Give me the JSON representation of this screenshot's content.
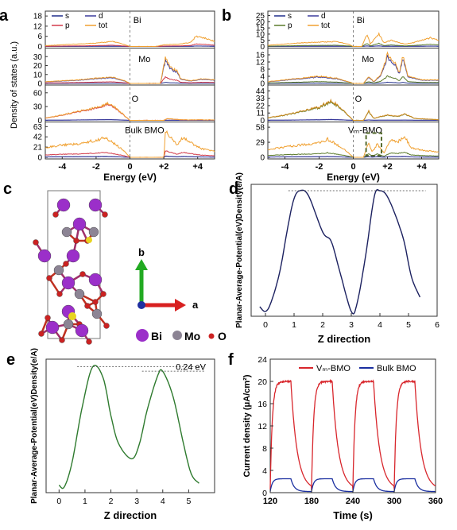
{
  "colors": {
    "s": "#1f2d8a",
    "p": "#d23b4a",
    "d": "#3a3a9c",
    "tot": "#f0a030",
    "pDark": "#5a7a2a",
    "totDark": "#d08a20",
    "curveD": "#1c2160",
    "curveE": "#2e7a2e",
    "vmbmo": "#d8262c",
    "bulk": "#1a2fa0",
    "bi": "#9b2fc9",
    "mo": "#8c8494",
    "o": "#cc2222",
    "highlight": "#556b2f"
  },
  "panels": {
    "a": {
      "letter": "a",
      "ylabel": "Density of states (a.u.)",
      "xlabel": "Energy (eV)"
    },
    "b": {
      "letter": "b",
      "ylabel": "",
      "xlabel": "Energy (eV)"
    },
    "c": {
      "letter": "c",
      "legend": [
        "Bi",
        "Mo",
        "O"
      ],
      "axis_b": "b",
      "axis_a": "a"
    },
    "d": {
      "letter": "d",
      "ylabel": "Planar-Average-Potential(eV)Density(e/A)",
      "xlabel": "Z direction"
    },
    "e": {
      "letter": "e",
      "ylabel": "Planar-Average-Potential(eV)Density(e/A)",
      "xlabel": "Z direction",
      "annotation": "0.24 eV"
    },
    "f": {
      "letter": "f",
      "ylabel": "Current density (μA/cm²)",
      "xlabel": "Time (s)"
    }
  },
  "chart_data": [
    {
      "id": "a",
      "type": "line",
      "xlabel": "Energy (eV)",
      "ylabel": "Density of states (a.u.)",
      "xlim": [
        -5,
        5
      ],
      "xticks": [
        "-4",
        "-2",
        "0",
        "+2",
        "+4"
      ],
      "legend": [
        "s",
        "d",
        "p",
        "tot"
      ],
      "subpanels": [
        {
          "label": "Bi",
          "ylim": [
            0,
            19
          ],
          "yticks": [
            "0",
            "6",
            "12",
            "18"
          ],
          "tot_points": [
            [
              -5,
              0.5
            ],
            [
              -4,
              1
            ],
            [
              -3,
              1.5
            ],
            [
              -2,
              2
            ],
            [
              -1,
              3
            ],
            [
              -0.3,
              1
            ],
            [
              0,
              0
            ],
            [
              1.5,
              0
            ],
            [
              2.0,
              1
            ],
            [
              3.0,
              1.5
            ],
            [
              3.6,
              2.5
            ],
            [
              3.9,
              6
            ],
            [
              4.4,
              5
            ],
            [
              5,
              3
            ]
          ]
        },
        {
          "label": "Mo",
          "ylim": [
            0,
            36
          ],
          "yticks": [
            "0",
            "10",
            "20",
            "30"
          ],
          "tot_points": [
            [
              -5,
              2
            ],
            [
              -4,
              3
            ],
            [
              -3,
              4
            ],
            [
              -2,
              6
            ],
            [
              -1,
              7
            ],
            [
              -0.3,
              3
            ],
            [
              0,
              0
            ],
            [
              1.8,
              0
            ],
            [
              2.1,
              30
            ],
            [
              2.4,
              18
            ],
            [
              2.8,
              14
            ],
            [
              3.0,
              5
            ],
            [
              3.6,
              3
            ],
            [
              4.2,
              5
            ],
            [
              5,
              4
            ]
          ]
        },
        {
          "label": "O",
          "ylim": [
            0,
            70
          ],
          "yticks": [
            "0",
            "30",
            "60"
          ],
          "tot_points": [
            [
              -5,
              5
            ],
            [
              -4,
              12
            ],
            [
              -3,
              20
            ],
            [
              -2,
              28
            ],
            [
              -1.2,
              38
            ],
            [
              -0.6,
              20
            ],
            [
              0,
              0
            ],
            [
              2.0,
              0
            ],
            [
              2.2,
              4
            ],
            [
              2.8,
              2
            ],
            [
              3.2,
              1
            ],
            [
              5,
              1
            ]
          ]
        },
        {
          "label": "Bulk BMO",
          "ylim": [
            0,
            66
          ],
          "yticks": [
            "0",
            "21",
            "42",
            "63"
          ],
          "tot_points": [
            [
              -5,
              20
            ],
            [
              -4,
              25
            ],
            [
              -3,
              28
            ],
            [
              -2,
              35
            ],
            [
              -1.5,
              40
            ],
            [
              -1,
              30
            ],
            [
              -0.4,
              15
            ],
            [
              0,
              0
            ],
            [
              2.0,
              0
            ],
            [
              2.1,
              55
            ],
            [
              2.4,
              40
            ],
            [
              2.8,
              25
            ],
            [
              3.1,
              40
            ],
            [
              3.6,
              30
            ],
            [
              4.2,
              18
            ],
            [
              5,
              12
            ]
          ]
        }
      ]
    },
    {
      "id": "b",
      "type": "line",
      "xlabel": "Energy (eV)",
      "ylabel": "",
      "xlim": [
        -5,
        5
      ],
      "xticks": [
        "-4",
        "-2",
        "0",
        "+2",
        "+4"
      ],
      "legend": [
        "s",
        "d",
        "p",
        "tot"
      ],
      "subpanels": [
        {
          "label": "Bi",
          "ylim": [
            0,
            26
          ],
          "yticks": [
            "0",
            "5",
            "10",
            "15",
            "20",
            "25"
          ],
          "tot_points": [
            [
              -5,
              1
            ],
            [
              -4,
              2
            ],
            [
              -3,
              3
            ],
            [
              -2,
              3.5
            ],
            [
              -1,
              4
            ],
            [
              -0.3,
              2
            ],
            [
              0,
              0
            ],
            [
              0.5,
              0
            ],
            [
              0.8,
              10
            ],
            [
              1.0,
              2
            ],
            [
              1.5,
              10
            ],
            [
              1.8,
              3
            ],
            [
              2.2,
              5
            ],
            [
              3.0,
              2
            ],
            [
              3.5,
              3
            ],
            [
              4.0,
              5
            ],
            [
              4.5,
              7
            ],
            [
              5,
              5
            ]
          ]
        },
        {
          "label": "Mo",
          "ylim": [
            0,
            18
          ],
          "yticks": [
            "0",
            "4",
            "8",
            "12",
            "16"
          ],
          "tot_points": [
            [
              -5,
              1
            ],
            [
              -4,
              2
            ],
            [
              -3,
              3
            ],
            [
              -2,
              4
            ],
            [
              -1,
              3
            ],
            [
              -0.3,
              1
            ],
            [
              0,
              0
            ],
            [
              0.6,
              0
            ],
            [
              0.9,
              4
            ],
            [
              1.2,
              1
            ],
            [
              1.6,
              5
            ],
            [
              2.0,
              16
            ],
            [
              2.4,
              12
            ],
            [
              2.7,
              6
            ],
            [
              2.9,
              16
            ],
            [
              3.2,
              4
            ],
            [
              4,
              2
            ],
            [
              5,
              2
            ]
          ]
        },
        {
          "label": "O",
          "ylim": [
            0,
            48
          ],
          "yticks": [
            "0",
            "11",
            "22",
            "33",
            "44"
          ],
          "tot_points": [
            [
              -5,
              4
            ],
            [
              -4,
              8
            ],
            [
              -3,
              14
            ],
            [
              -2,
              20
            ],
            [
              -1.3,
              30
            ],
            [
              -0.6,
              16
            ],
            [
              0,
              0
            ],
            [
              0.6,
              0
            ],
            [
              0.9,
              14
            ],
            [
              1.2,
              3
            ],
            [
              1.6,
              6
            ],
            [
              2.0,
              8
            ],
            [
              2.6,
              6
            ],
            [
              3.0,
              10
            ],
            [
              3.6,
              3
            ],
            [
              5,
              1
            ]
          ]
        },
        {
          "label": "Vₘ-BMO",
          "ylim": [
            0,
            62
          ],
          "yticks": [
            "0",
            "29",
            "58"
          ],
          "tot_points": [
            [
              -5,
              15
            ],
            [
              -4,
              20
            ],
            [
              -3,
              24
            ],
            [
              -2,
              28
            ],
            [
              -1.5,
              35
            ],
            [
              -1,
              25
            ],
            [
              -0.4,
              12
            ],
            [
              0,
              0
            ],
            [
              0.6,
              0
            ],
            [
              0.9,
              30
            ],
            [
              1.1,
              10
            ],
            [
              1.4,
              25
            ],
            [
              1.8,
              8
            ],
            [
              2.2,
              35
            ],
            [
              2.6,
              30
            ],
            [
              3.0,
              40
            ],
            [
              3.4,
              18
            ],
            [
              4,
              14
            ],
            [
              5,
              10
            ]
          ]
        }
      ]
    },
    {
      "id": "d",
      "type": "line",
      "xlabel": "Z direction",
      "ylabel": "Planar-Average-Potential(eV)Density(e/A)",
      "xlim": [
        -0.5,
        6
      ],
      "xticks": [
        "0",
        "1",
        "2",
        "3",
        "4",
        "5",
        "6"
      ],
      "ylim": [
        -4.3,
        4.0
      ],
      "series": [
        {
          "points": [
            [
              -0.2,
              -3.7
            ],
            [
              0,
              -4.0
            ],
            [
              0.2,
              -3.4
            ],
            [
              0.5,
              -1.5
            ],
            [
              0.8,
              1.5
            ],
            [
              1.0,
              3.1
            ],
            [
              1.2,
              3.6
            ],
            [
              1.5,
              3.3
            ],
            [
              2.0,
              1.0
            ],
            [
              2.3,
              0.4
            ],
            [
              2.6,
              -1.5
            ],
            [
              3.0,
              -4.0
            ],
            [
              3.2,
              -3.5
            ],
            [
              3.5,
              -0.5
            ],
            [
              3.8,
              3.2
            ],
            [
              4.0,
              3.6
            ],
            [
              4.3,
              3.1
            ],
            [
              4.8,
              0.7
            ],
            [
              5.1,
              -1.8
            ],
            [
              5.4,
              -3.1
            ]
          ]
        }
      ],
      "reference_line": 3.6
    },
    {
      "id": "e",
      "type": "line",
      "xlabel": "Z direction",
      "ylabel": "Planar-Average-Potential(eV)Density(e/A)",
      "xlim": [
        -0.5,
        6
      ],
      "xticks": [
        "0",
        "1",
        "2",
        "3",
        "4",
        "5"
      ],
      "ylim": [
        -3.6,
        3.5
      ],
      "series": [
        {
          "points": [
            [
              0,
              -3.2
            ],
            [
              0.2,
              -3.3
            ],
            [
              0.5,
              -2.0
            ],
            [
              0.9,
              1.0
            ],
            [
              1.3,
              3.1
            ],
            [
              1.7,
              2.5
            ],
            [
              2.0,
              0.5
            ],
            [
              2.3,
              -1.0
            ],
            [
              2.8,
              -1.8
            ],
            [
              3.1,
              -1.0
            ],
            [
              3.4,
              0.8
            ],
            [
              3.8,
              2.6
            ],
            [
              4.0,
              2.85
            ],
            [
              4.4,
              1.5
            ],
            [
              4.8,
              -1.0
            ],
            [
              5.1,
              -2.6
            ],
            [
              5.4,
              -3.1
            ]
          ]
        }
      ],
      "reference_lines": [
        3.1,
        2.86
      ],
      "annotation": "0.24 eV"
    },
    {
      "id": "f",
      "type": "line",
      "xlabel": "Time (s)",
      "ylabel": "Current density (μA/cm²)",
      "xlim": [
        120,
        360
      ],
      "xticks": [
        "120",
        "180",
        "240",
        "300",
        "360"
      ],
      "ylim": [
        0,
        24
      ],
      "yticks": [
        "0",
        "4",
        "8",
        "12",
        "16",
        "20",
        "24"
      ],
      "legend": [
        "Vₘ-BMO",
        "Bulk BMO"
      ],
      "series": [
        {
          "name": "Vₘ-BMO",
          "on_intervals": [
            [
              120,
              150
            ],
            [
              180,
              210
            ],
            [
              240,
              270
            ],
            [
              300,
              330
            ]
          ],
          "on_value": 20,
          "rise_tau": 3,
          "decay_tau": 9,
          "baseline": 0.5
        },
        {
          "name": "Bulk BMO",
          "on_intervals": [
            [
              120,
              150
            ],
            [
              180,
              210
            ],
            [
              240,
              270
            ],
            [
              300,
              330
            ]
          ],
          "on_value": 2.5,
          "rise_tau": 3,
          "decay_tau": 5,
          "baseline": 0.2
        }
      ]
    }
  ]
}
